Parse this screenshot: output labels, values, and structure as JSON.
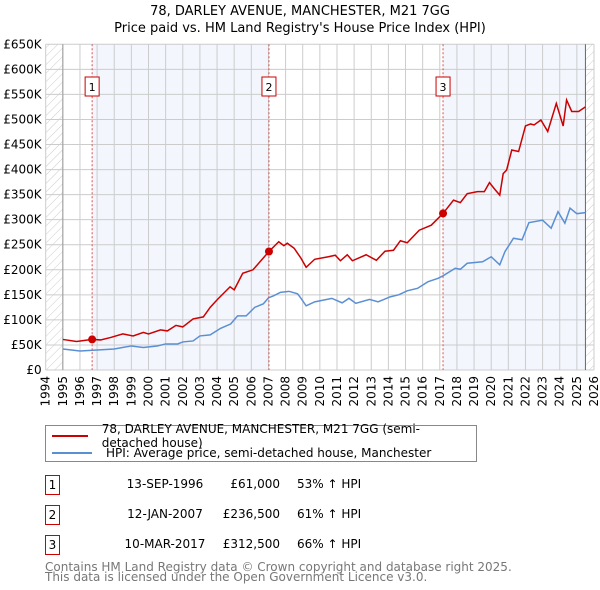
{
  "chart_data": {
    "type": "line",
    "title": "78, DARLEY AVENUE, MANCHESTER, M21 7GG",
    "subtitle": "Price paid vs. HM Land Registry's House Price Index (HPI)",
    "xlim": [
      1994,
      2026
    ],
    "ylim": [
      0,
      650
    ],
    "x_ticks": [
      "1994",
      "1995",
      "1996",
      "1997",
      "1998",
      "1999",
      "2000",
      "2001",
      "2002",
      "2003",
      "2004",
      "2005",
      "2006",
      "2007",
      "2008",
      "2009",
      "2010",
      "2011",
      "2012",
      "2013",
      "2014",
      "2015",
      "2016",
      "2017",
      "2018",
      "2019",
      "2020",
      "2021",
      "2022",
      "2023",
      "2024",
      "2025",
      "2026"
    ],
    "y_ticks": [
      {
        "v": 0,
        "label": "£0"
      },
      {
        "v": 50,
        "label": "£50K"
      },
      {
        "v": 100,
        "label": "£100K"
      },
      {
        "v": 150,
        "label": "£150K"
      },
      {
        "v": 200,
        "label": "£200K"
      },
      {
        "v": 250,
        "label": "£250K"
      },
      {
        "v": 300,
        "label": "£300K"
      },
      {
        "v": 350,
        "label": "£350K"
      },
      {
        "v": 400,
        "label": "£400K"
      },
      {
        "v": 450,
        "label": "£450K"
      },
      {
        "v": 500,
        "label": "£500K"
      },
      {
        "v": 550,
        "label": "£550K"
      },
      {
        "v": 600,
        "label": "£600K"
      },
      {
        "v": 650,
        "label": "£650K"
      }
    ],
    "grid": true,
    "series": [
      {
        "name": "78, DARLEY AVENUE, MANCHESTER, M21 7GG (semi-detached house)",
        "color": "#cc0000",
        "points": [
          [
            1995,
            61
          ],
          [
            1995.8,
            57
          ],
          [
            1996.71,
            61
          ],
          [
            1997.2,
            60
          ],
          [
            1997.8,
            65
          ],
          [
            1998.5,
            72
          ],
          [
            1999.1,
            68
          ],
          [
            1999.7,
            75
          ],
          [
            2000,
            72
          ],
          [
            2000.7,
            80
          ],
          [
            2001.1,
            78
          ],
          [
            2001.6,
            89
          ],
          [
            2002,
            86
          ],
          [
            2002.6,
            102
          ],
          [
            2003.2,
            106
          ],
          [
            2003.6,
            125
          ],
          [
            2004,
            140
          ],
          [
            2004.76,
            166
          ],
          [
            2005,
            160
          ],
          [
            2005.5,
            193
          ],
          [
            2006.1,
            200
          ],
          [
            2007.03,
            236.5
          ],
          [
            2007.6,
            256
          ],
          [
            2007.9,
            248
          ],
          [
            2008.1,
            253
          ],
          [
            2008.5,
            243
          ],
          [
            2008.9,
            223
          ],
          [
            2009.2,
            205
          ],
          [
            2009.7,
            221
          ],
          [
            2010.5,
            226
          ],
          [
            2010.9,
            229
          ],
          [
            2011.2,
            218
          ],
          [
            2011.6,
            230
          ],
          [
            2011.9,
            218
          ],
          [
            2012.7,
            230
          ],
          [
            2013.3,
            219
          ],
          [
            2013.8,
            237
          ],
          [
            2014.3,
            239
          ],
          [
            2014.7,
            258
          ],
          [
            2015.1,
            254
          ],
          [
            2015.8,
            279
          ],
          [
            2016.5,
            289
          ],
          [
            2017.19,
            312.5
          ],
          [
            2017.8,
            339
          ],
          [
            2018.2,
            334
          ],
          [
            2018.6,
            352
          ],
          [
            2019.2,
            356
          ],
          [
            2019.6,
            356
          ],
          [
            2019.9,
            374
          ],
          [
            2020.2,
            361
          ],
          [
            2020.5,
            349
          ],
          [
            2020.7,
            392
          ],
          [
            2020.9,
            399
          ],
          [
            2021.2,
            439
          ],
          [
            2021.6,
            436
          ],
          [
            2022,
            487
          ],
          [
            2022.3,
            491
          ],
          [
            2022.5,
            489
          ],
          [
            2022.9,
            499
          ],
          [
            2023.3,
            476
          ],
          [
            2023.8,
            532
          ],
          [
            2024.2,
            487
          ],
          [
            2024.4,
            539
          ],
          [
            2024.7,
            516
          ],
          [
            2025.1,
            516
          ],
          [
            2025.5,
            525
          ]
        ]
      },
      {
        "name": "HPI: Average price, semi-detached house, Manchester",
        "color": "#5b8fd4",
        "points": [
          [
            1995,
            42
          ],
          [
            1996,
            38
          ],
          [
            1997,
            40
          ],
          [
            1998,
            42
          ],
          [
            1999,
            48
          ],
          [
            1999.7,
            45
          ],
          [
            2000.5,
            48
          ],
          [
            2001,
            52
          ],
          [
            2001.7,
            52
          ],
          [
            2002,
            56
          ],
          [
            2002.6,
            58
          ],
          [
            2003,
            68
          ],
          [
            2003.6,
            70
          ],
          [
            2004.2,
            83
          ],
          [
            2004.8,
            92
          ],
          [
            2005.2,
            108
          ],
          [
            2005.7,
            108
          ],
          [
            2006.2,
            125
          ],
          [
            2006.7,
            132
          ],
          [
            2007,
            144
          ],
          [
            2007.3,
            148
          ],
          [
            2007.7,
            155
          ],
          [
            2008.2,
            157
          ],
          [
            2008.7,
            152
          ],
          [
            2008.9,
            143
          ],
          [
            2009.2,
            128
          ],
          [
            2009.7,
            136
          ],
          [
            2010.7,
            143
          ],
          [
            2011.3,
            134
          ],
          [
            2011.7,
            143
          ],
          [
            2012.1,
            133
          ],
          [
            2012.9,
            141
          ],
          [
            2013.4,
            136
          ],
          [
            2014.1,
            146
          ],
          [
            2014.6,
            150
          ],
          [
            2015.1,
            158
          ],
          [
            2015.7,
            163
          ],
          [
            2016.3,
            176
          ],
          [
            2016.9,
            183
          ],
          [
            2017.19,
            188
          ],
          [
            2017.9,
            203
          ],
          [
            2018.2,
            201
          ],
          [
            2018.6,
            213
          ],
          [
            2019.5,
            216
          ],
          [
            2020,
            226
          ],
          [
            2020.5,
            210
          ],
          [
            2020.8,
            236
          ],
          [
            2021.3,
            263
          ],
          [
            2021.8,
            260
          ],
          [
            2022.2,
            294
          ],
          [
            2023,
            299
          ],
          [
            2023.5,
            283
          ],
          [
            2023.9,
            316
          ],
          [
            2024.3,
            293
          ],
          [
            2024.6,
            323
          ],
          [
            2025,
            312
          ],
          [
            2025.5,
            314
          ]
        ]
      }
    ],
    "shaded_ranges": [
      [
        1996.71,
        2007.03
      ],
      [
        2017.19,
        2025.5
      ]
    ],
    "hatched_ranges": [
      [
        1994,
        1995
      ],
      [
        2025.5,
        2026
      ]
    ],
    "sales": [
      {
        "label": "1",
        "x": 1996.71,
        "y": 61,
        "date": "13-SEP-1996",
        "price": "£61,000",
        "hpi": "53% ↑ HPI"
      },
      {
        "label": "2",
        "x": 2007.03,
        "y": 236.5,
        "date": "12-JAN-2007",
        "price": "£236,500",
        "hpi": "61% ↑ HPI"
      },
      {
        "label": "3",
        "x": 2017.19,
        "y": 312.5,
        "date": "10-MAR-2017",
        "price": "£312,500",
        "hpi": "66% ↑ HPI"
      }
    ]
  },
  "footer": {
    "line1": "Contains HM Land Registry data © Crown copyright and database right 2025.",
    "line2": "This data is licensed under the Open Government Licence v3.0."
  }
}
